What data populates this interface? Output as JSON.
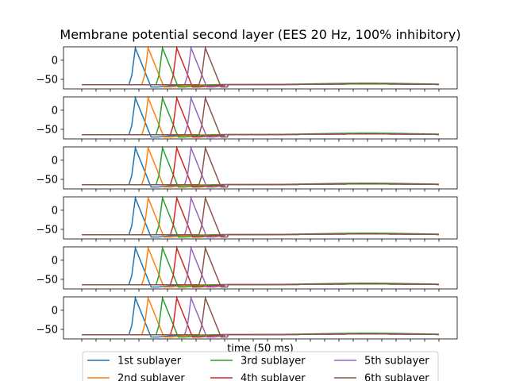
{
  "chart_data": {
    "type": "line",
    "title": "Membrane potential second layer (EES 20 Hz, 100% inhibitory)",
    "xlabel": "time (50 ms)",
    "ylabel": "",
    "xlim": [
      0,
      50
    ],
    "ylim": [
      -75,
      35
    ],
    "yticks": [
      0,
      -50
    ],
    "num_panels": 6,
    "resting_potential": -64,
    "spike_peak": 32,
    "series": [
      {
        "name": "1st sublayer",
        "color": "#1f77b4",
        "spike_time": 7.5,
        "late_bump": -62
      },
      {
        "name": "2nd sublayer",
        "color": "#ff7f0e",
        "spike_time": 9.3,
        "late_bump": -62
      },
      {
        "name": "3rd sublayer",
        "color": "#2ca02c",
        "spike_time": 11.3,
        "late_bump": -60
      },
      {
        "name": "4th sublayer",
        "color": "#d62728",
        "spike_time": 13.3,
        "late_bump": -62
      },
      {
        "name": "5th sublayer",
        "color": "#9467bd",
        "spike_time": 15.3,
        "late_bump": -62
      },
      {
        "name": "6th sublayer",
        "color": "#8c564b",
        "spike_time": 17.3,
        "late_bump": -62
      }
    ]
  }
}
